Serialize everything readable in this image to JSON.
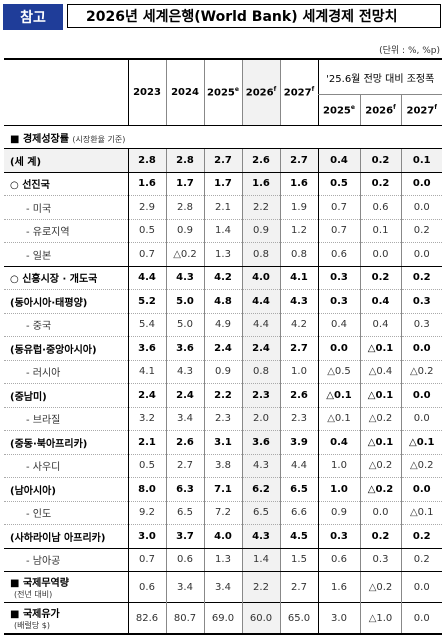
{
  "header": {
    "badge": "참고",
    "title": "2026년 세계은행(World Bank) 세계경제 전망치"
  },
  "unit": "(단위 : %, %p)",
  "columns": {
    "years": [
      "2023",
      "2024",
      "2025",
      "2026",
      "2027"
    ],
    "year_marks": [
      "",
      "",
      "e",
      "f",
      "f"
    ],
    "delta_title": "'25.6월 전망 대비 조정폭",
    "delta_years": [
      "2025",
      "2026",
      "2027"
    ],
    "delta_marks": [
      "e",
      "f",
      "f"
    ]
  },
  "sections": {
    "growth_title": "경제성장률",
    "growth_note": "(시장환율 기준)"
  },
  "rows": [
    {
      "label": "(세   계)",
      "values": [
        "2.8",
        "2.8",
        "2.7",
        "2.6",
        "2.7",
        "0.4",
        "0.2",
        "0.1"
      ]
    },
    {
      "label": "○  선진국",
      "values": [
        "1.6",
        "1.7",
        "1.7",
        "1.6",
        "1.6",
        "0.5",
        "0.2",
        "0.0"
      ]
    },
    {
      "label": "- 미국",
      "values": [
        "2.9",
        "2.8",
        "2.1",
        "2.2",
        "1.9",
        "0.7",
        "0.6",
        "0.0"
      ]
    },
    {
      "label": "- 유로지역",
      "values": [
        "0.5",
        "0.9",
        "1.4",
        "0.9",
        "1.2",
        "0.7",
        "0.1",
        "0.2"
      ]
    },
    {
      "label": "- 일본",
      "values": [
        "0.7",
        "△0.2",
        "1.3",
        "0.8",
        "0.8",
        "0.6",
        "0.0",
        "0.0"
      ]
    },
    {
      "label": "○  신흥시장 · 개도국",
      "values": [
        "4.4",
        "4.3",
        "4.2",
        "4.0",
        "4.1",
        "0.3",
        "0.2",
        "0.2"
      ]
    },
    {
      "label": "(동아시아·태평양)",
      "values": [
        "5.2",
        "5.0",
        "4.8",
        "4.4",
        "4.3",
        "0.3",
        "0.4",
        "0.3"
      ]
    },
    {
      "label": "- 중국",
      "values": [
        "5.4",
        "5.0",
        "4.9",
        "4.4",
        "4.2",
        "0.4",
        "0.4",
        "0.3"
      ]
    },
    {
      "label": "(동유럽·중앙아시아)",
      "values": [
        "3.6",
        "3.6",
        "2.4",
        "2.4",
        "2.7",
        "0.0",
        "△0.1",
        "0.0"
      ]
    },
    {
      "label": "- 러시아",
      "values": [
        "4.1",
        "4.3",
        "0.9",
        "0.8",
        "1.0",
        "△0.5",
        "△0.4",
        "△0.2"
      ]
    },
    {
      "label": "(중남미)",
      "values": [
        "2.4",
        "2.4",
        "2.2",
        "2.3",
        "2.6",
        "△0.1",
        "△0.1",
        "0.0"
      ]
    },
    {
      "label": "- 브라질",
      "values": [
        "3.2",
        "3.4",
        "2.3",
        "2.0",
        "2.3",
        "△0.1",
        "△0.2",
        "0.0"
      ]
    },
    {
      "label": "(중동·북아프리카)",
      "values": [
        "2.1",
        "2.6",
        "3.1",
        "3.6",
        "3.9",
        "0.4",
        "△0.1",
        "△0.1"
      ]
    },
    {
      "label": "- 사우디",
      "values": [
        "0.5",
        "2.7",
        "3.8",
        "4.3",
        "4.4",
        "1.0",
        "△0.2",
        "△0.2"
      ]
    },
    {
      "label": "(남아시아)",
      "values": [
        "8.0",
        "6.3",
        "7.1",
        "6.2",
        "6.5",
        "1.0",
        "△0.2",
        "0.0"
      ]
    },
    {
      "label": "- 인도",
      "values": [
        "9.2",
        "6.5",
        "7.2",
        "6.5",
        "6.6",
        "0.9",
        "0.0",
        "△0.1"
      ]
    },
    {
      "label": "(사하라이남 아프리카)",
      "values": [
        "3.0",
        "3.7",
        "4.0",
        "4.3",
        "4.5",
        "0.3",
        "0.2",
        "0.2"
      ]
    },
    {
      "label": "- 남아공",
      "values": [
        "0.7",
        "0.6",
        "1.3",
        "1.4",
        "1.5",
        "0.6",
        "0.3",
        "0.2"
      ]
    },
    {
      "label": "국제무역량",
      "note": "(전년 대비)",
      "values": [
        "0.6",
        "3.4",
        "3.4",
        "2.2",
        "2.7",
        "1.6",
        "△0.2",
        "0.0"
      ]
    },
    {
      "label": "국제유가",
      "note": "(배럴당 $)",
      "values": [
        "82.6",
        "80.7",
        "69.0",
        "60.0",
        "65.0",
        "3.0",
        "△1.0",
        "0.0"
      ]
    }
  ]
}
